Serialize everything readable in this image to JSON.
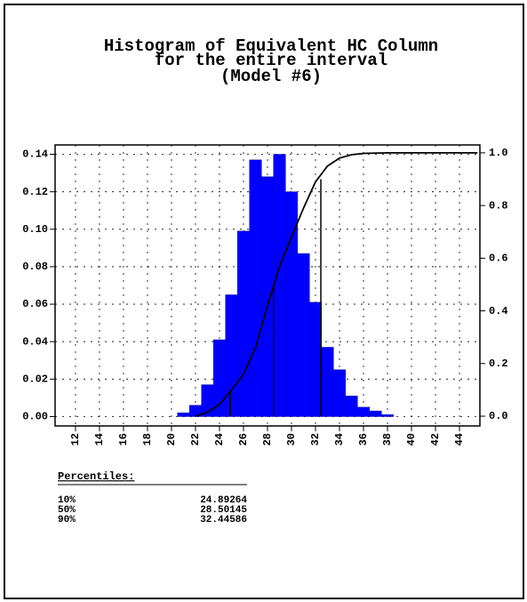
{
  "chart_data": {
    "type": "histogram",
    "title": [
      "Histogram of Equivalent HC Column",
      "for the entire interval",
      "(Model #6)"
    ],
    "bins": [
      20.5,
      21.5,
      22.5,
      23.5,
      24.5,
      25.5,
      26.5,
      27.5,
      28.5,
      29.5,
      30.5,
      31.5,
      32.5,
      33.5,
      34.5,
      35.5,
      36.5,
      37.5,
      38.5
    ],
    "values": [
      0.002,
      0.006,
      0.017,
      0.041,
      0.065,
      0.099,
      0.137,
      0.128,
      0.14,
      0.12,
      0.087,
      0.061,
      0.037,
      0.025,
      0.011,
      0.005,
      0.003,
      0.001
    ],
    "color": "#0000ff",
    "cdf": {
      "color": "#000000",
      "axis": "y2",
      "x": [
        22,
        23,
        24,
        25,
        26,
        27,
        28,
        29,
        30,
        31,
        32,
        33,
        34,
        35,
        36,
        38,
        45.5
      ],
      "values": [
        0,
        0.015,
        0.045,
        0.1,
        0.16,
        0.26,
        0.42,
        0.57,
        0.68,
        0.79,
        0.89,
        0.95,
        0.98,
        0.993,
        0.998,
        1.0,
        1.0
      ]
    },
    "xlim": [
      10.3,
      45.7
    ],
    "xticks": [
      12,
      14,
      16,
      18,
      20,
      22,
      24,
      26,
      28,
      30,
      32,
      34,
      36,
      38,
      40,
      42,
      44
    ],
    "ylim": [
      -0.005,
      0.145
    ],
    "yticks": [
      {
        "value": 0,
        "label": "0.00"
      },
      {
        "value": 0.02,
        "label": "0.02"
      },
      {
        "value": 0.04,
        "label": "0.04"
      },
      {
        "value": 0.06,
        "label": "0.06"
      },
      {
        "value": 0.08,
        "label": "0.08"
      },
      {
        "value": 0.1,
        "label": "0.10"
      },
      {
        "value": 0.12,
        "label": "0.12"
      },
      {
        "value": 0.14,
        "label": "0.14"
      }
    ],
    "y2lim": [
      -0.037,
      1.03
    ],
    "y2ticks": [
      {
        "value": 0,
        "label": "0.0"
      },
      0.2,
      0.4,
      0.6,
      0.8,
      {
        "value": 1,
        "label": "1.0"
      }
    ],
    "grid": true,
    "percentiles_title": "Percentiles:",
    "percentiles": [
      {
        "label": "10%",
        "value": 24.89264,
        "level": 0.1
      },
      {
        "label": "50%",
        "value": 28.50145,
        "level": 0.5
      },
      {
        "label": "90%",
        "value": 32.44586,
        "level": 0.9
      }
    ]
  }
}
